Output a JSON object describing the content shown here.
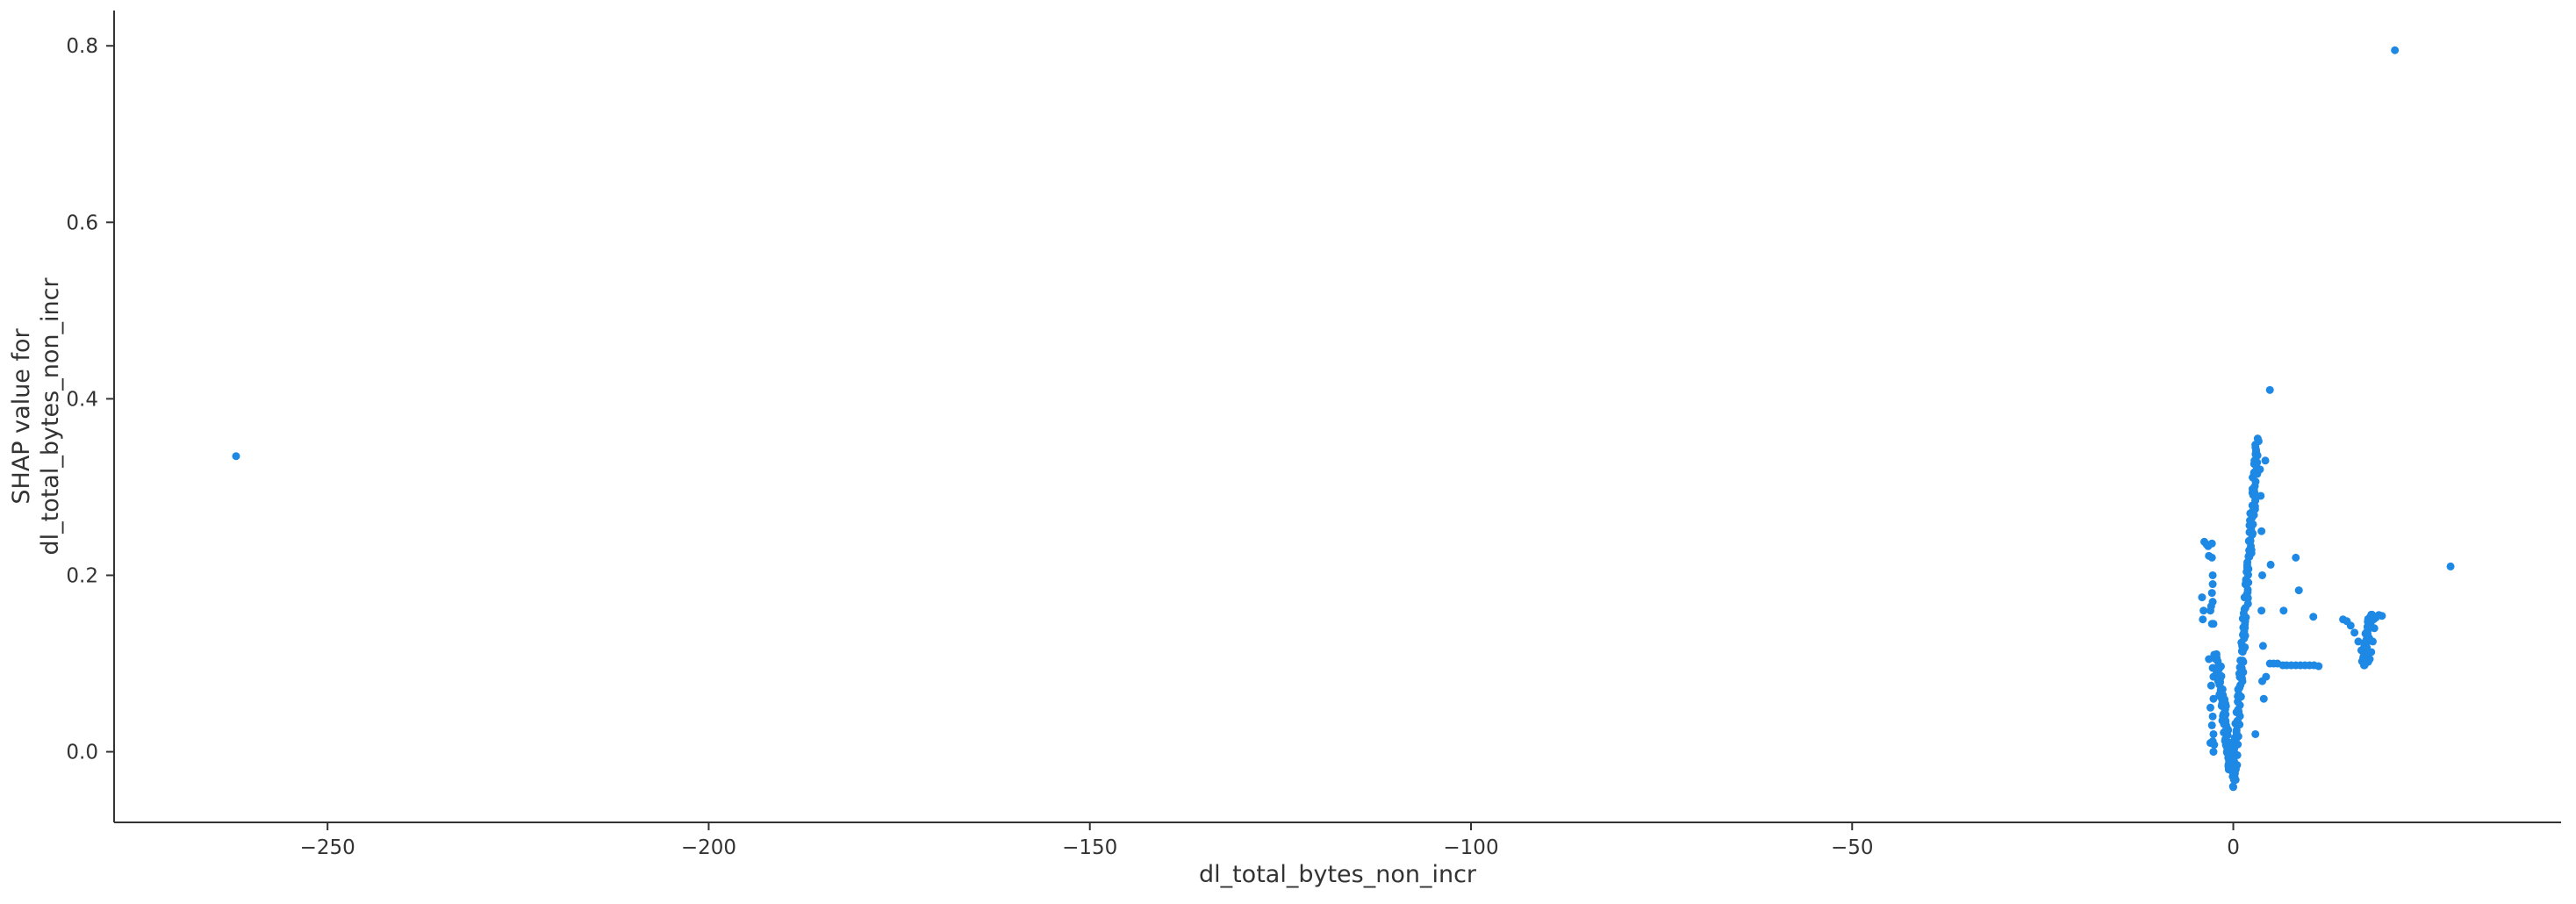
{
  "chart_data": {
    "type": "scatter",
    "title": "",
    "xlabel": "dl_total_bytes_non_incr",
    "ylabel_lines": [
      "SHAP value for",
      "dl_total_bytes_non_incr"
    ],
    "xlim": [
      -278,
      43
    ],
    "ylim": [
      -0.08,
      0.84
    ],
    "xticks": [
      -250,
      -200,
      -150,
      -100,
      -50,
      0
    ],
    "xtick_labels": [
      "−250",
      "−200",
      "−150",
      "−100",
      "−50",
      "0"
    ],
    "yticks": [
      0.0,
      0.2,
      0.4,
      0.6,
      0.8
    ],
    "ytick_labels": [
      "0.0",
      "0.2",
      "0.4",
      "0.6",
      "0.8"
    ],
    "grid": false,
    "spines": [
      "left",
      "bottom"
    ],
    "marker_color": "#1E88E5",
    "marker_radius": 4.5,
    "points": [
      [
        -262,
        0.335
      ],
      [
        21.2,
        0.795
      ],
      [
        4.8,
        0.41
      ],
      [
        28.5,
        0.21
      ],
      [
        8.2,
        0.22
      ],
      [
        8.6,
        0.183
      ],
      [
        4.2,
        0.33
      ],
      [
        4.9,
        0.212
      ],
      [
        6.6,
        0.16
      ],
      [
        10.5,
        0.153
      ],
      [
        2.9,
        0.02
      ],
      [
        4.3,
        0.085
      ],
      [
        -4.1,
        0.175
      ],
      [
        -3.9,
        0.16
      ],
      [
        -4.0,
        0.15
      ],
      [
        -3.8,
        0.238
      ],
      [
        -3.5,
        0.235
      ],
      [
        -3.3,
        0.233
      ],
      [
        -2.8,
        0.236
      ],
      [
        -3.2,
        0.222
      ],
      [
        -2.8,
        0.22
      ],
      [
        -2.7,
        0.19
      ],
      [
        -2.7,
        0.2
      ],
      [
        -2.8,
        0.18
      ],
      [
        -2.9,
        0.165
      ],
      [
        -2.7,
        0.17
      ],
      [
        -3.0,
        0.16
      ],
      [
        -2.6,
        0.145
      ],
      [
        -2.8,
        0.145
      ],
      [
        -3.2,
        0.105
      ],
      [
        -2.5,
        0.11
      ],
      [
        -2.7,
        0.095
      ],
      [
        -2.6,
        0.085
      ],
      [
        -2.9,
        0.075
      ],
      [
        -2.6,
        0.06
      ],
      [
        -3.0,
        0.05
      ],
      [
        -2.7,
        0.04
      ],
      [
        -2.8,
        0.03
      ],
      [
        -2.6,
        0.02
      ],
      [
        -3.0,
        0.01
      ],
      [
        -2.6,
        0.0
      ],
      [
        -2.7,
        0.012
      ],
      [
        -2.5,
        0.008
      ],
      [
        0.0,
        -0.04
      ],
      [
        -0.6,
        -0.02
      ],
      [
        0.5,
        -0.015
      ],
      [
        3.2,
        0.355
      ],
      [
        3.0,
        0.34
      ],
      [
        2.8,
        0.33
      ],
      [
        3.5,
        0.32
      ],
      [
        3.6,
        0.29
      ],
      [
        3.7,
        0.25
      ],
      [
        3.8,
        0.2
      ],
      [
        3.7,
        0.16
      ],
      [
        3.9,
        0.12
      ],
      [
        3.8,
        0.08
      ],
      [
        4.0,
        0.06
      ],
      [
        4.8,
        0.1
      ],
      [
        5.3,
        0.1
      ],
      [
        5.8,
        0.1
      ],
      [
        6.5,
        0.098
      ],
      [
        7.0,
        0.098
      ],
      [
        7.6,
        0.098
      ],
      [
        8.2,
        0.098
      ],
      [
        8.8,
        0.098
      ],
      [
        9.4,
        0.098
      ],
      [
        10.0,
        0.098
      ],
      [
        10.6,
        0.098
      ],
      [
        11.2,
        0.097
      ],
      [
        14.4,
        0.15
      ],
      [
        14.9,
        0.148
      ],
      [
        15.4,
        0.143
      ],
      [
        15.9,
        0.135
      ],
      [
        16.4,
        0.125
      ],
      [
        16.8,
        0.115
      ],
      [
        17.2,
        0.108
      ],
      [
        17.5,
        0.103
      ],
      [
        17.7,
        0.102
      ],
      [
        17.9,
        0.105
      ],
      [
        18.1,
        0.113
      ],
      [
        18.3,
        0.125
      ],
      [
        18.5,
        0.14
      ],
      [
        18.7,
        0.152
      ],
      [
        19.1,
        0.155
      ],
      [
        19.5,
        0.154
      ],
      [
        18.0,
        0.145
      ],
      [
        18.4,
        0.15
      ],
      [
        17.6,
        0.13
      ]
    ],
    "dense_segments": [
      {
        "x0": -2.2,
        "y0": 0.11,
        "x1": 0.0,
        "y1": -0.035,
        "n": 90,
        "spread": 0.7
      },
      {
        "x0": 0.0,
        "y0": -0.035,
        "x1": 3.2,
        "y1": 0.35,
        "n": 150,
        "spread": 0.6
      },
      {
        "x0": 17.0,
        "y0": 0.1,
        "x1": 18.0,
        "y1": 0.155,
        "n": 40,
        "spread": 0.5
      }
    ]
  }
}
